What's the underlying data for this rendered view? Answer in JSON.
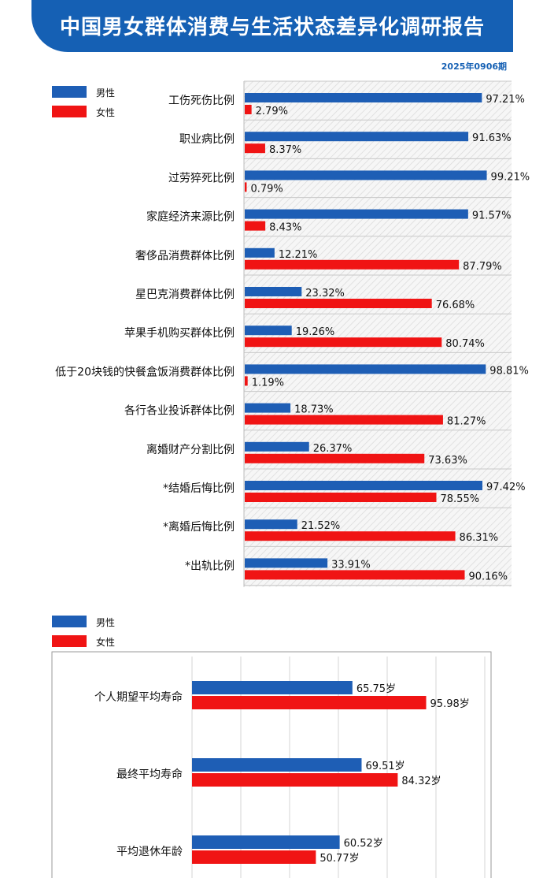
{
  "header": {
    "title": "中国男女群体消费与生活状态差异化调研报告",
    "issue": "2025年0906期"
  },
  "colors": {
    "male": "#1e5eb5",
    "female": "#f01414",
    "header_bg": "#1560b4"
  },
  "chart_data": [
    {
      "type": "bar",
      "orientation": "horizontal",
      "legend": {
        "position": "top-left",
        "entries": [
          "男性",
          "女性"
        ]
      },
      "value_suffix": "%",
      "xlim": [
        0,
        100
      ],
      "grid": true,
      "categories": [
        "工伤死伤比例",
        "职业病比例",
        "过劳猝死比例",
        "家庭经济来源比例",
        "奢侈品消费群体比例",
        "星巴克消费群体比例",
        "苹果手机购买群体比例",
        "低于20块钱的快餐盒饭消费群体比例",
        "各行各业投诉群体比例",
        "离婚财产分割比例",
        "*结婚后悔比例",
        "*离婚后悔比例",
        "*出轨比例"
      ],
      "series": [
        {
          "name": "男性",
          "values": [
            97.21,
            91.63,
            99.21,
            91.57,
            12.21,
            23.32,
            19.26,
            98.81,
            18.73,
            26.37,
            97.42,
            21.52,
            33.91
          ]
        },
        {
          "name": "女性",
          "values": [
            2.79,
            8.37,
            0.79,
            8.43,
            87.79,
            76.68,
            80.74,
            1.19,
            81.27,
            73.63,
            78.55,
            86.31,
            90.16
          ]
        }
      ]
    },
    {
      "type": "bar",
      "orientation": "horizontal",
      "legend": {
        "position": "top-left",
        "entries": [
          "男性",
          "女性"
        ]
      },
      "value_suffix": "岁",
      "xlim": [
        0,
        120
      ],
      "grid": true,
      "categories": [
        "个人期望平均寿命",
        "最终平均寿命",
        "平均退休年龄"
      ],
      "series": [
        {
          "name": "男性",
          "values": [
            65.75,
            69.51,
            60.52
          ]
        },
        {
          "name": "女性",
          "values": [
            95.98,
            84.32,
            50.77
          ]
        }
      ]
    }
  ]
}
